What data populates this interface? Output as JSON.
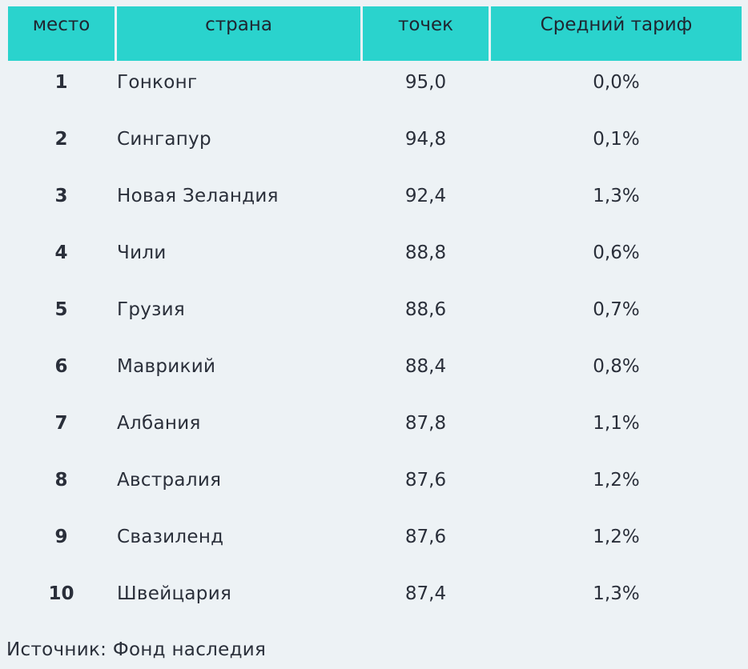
{
  "chart_data": {
    "type": "table",
    "columns": [
      "место",
      "страна",
      "точек",
      "Средний тариф"
    ],
    "rows": [
      {
        "rank": "1",
        "country": "Гонконг",
        "points": "95,0",
        "tariff": "0,0%"
      },
      {
        "rank": "2",
        "country": "Сингапур",
        "points": "94,8",
        "tariff": "0,1%"
      },
      {
        "rank": "3",
        "country": "Новая Зеландия",
        "points": "92,4",
        "tariff": "1,3%"
      },
      {
        "rank": "4",
        "country": "Чили",
        "points": "88,8",
        "tariff": "0,6%"
      },
      {
        "rank": "5",
        "country": "Грузия",
        "points": "88,6",
        "tariff": "0,7%"
      },
      {
        "rank": "6",
        "country": "Маврикий",
        "points": "88,4",
        "tariff": "0,8%"
      },
      {
        "rank": "7",
        "country": "Албания",
        "points": "87,8",
        "tariff": "1,1%"
      },
      {
        "rank": "8",
        "country": "Австралия",
        "points": "87,6",
        "tariff": "1,2%"
      },
      {
        "rank": "9",
        "country": "Свазиленд",
        "points": "87,6",
        "tariff": "1,2%"
      },
      {
        "rank": "10",
        "country": "Швейцария",
        "points": "87,4",
        "tariff": "1,3%"
      }
    ],
    "source": "Источник: Фонд наследия",
    "header_color": "#2ad3cd",
    "background_color": "#edf2f5"
  }
}
